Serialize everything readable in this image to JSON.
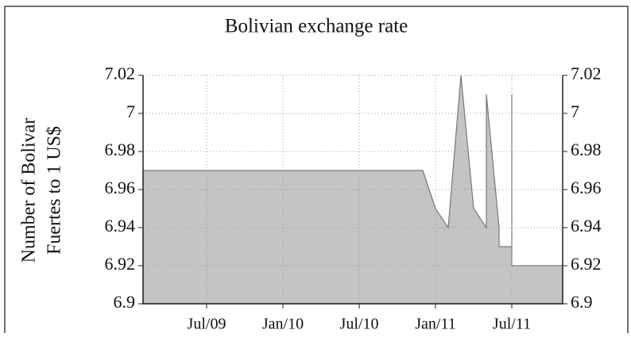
{
  "chart_data": {
    "type": "area",
    "title": "Bolivian exchange rate",
    "ylabel": [
      "Number of Bolivar",
      "Fuertes to 1 US$"
    ],
    "x": [
      "2009-02",
      "2010-12",
      "2011-01",
      "2011-02",
      "2011-03",
      "2011-04",
      "2011-05",
      "2011-05",
      "2011-06",
      "2011-06",
      "2011-07",
      "2011-07",
      "2011-07",
      "2011-11"
    ],
    "values": [
      6.97,
      6.97,
      6.95,
      6.94,
      7.02,
      6.95,
      6.94,
      7.01,
      6.94,
      6.93,
      6.93,
      7.01,
      6.92,
      6.92
    ],
    "color": "#c4c4c4",
    "xlim": [
      "2009-02",
      "2011-11"
    ],
    "xticks": [
      {
        "value": "2009-07",
        "label": "Jul/09"
      },
      {
        "value": "2010-01",
        "label": "Jan/10"
      },
      {
        "value": "2010-07",
        "label": "Jul/10"
      },
      {
        "value": "2011-01",
        "label": "Jan/11"
      },
      {
        "value": "2011-07",
        "label": "Jul/11"
      }
    ],
    "ylim": [
      6.9,
      7.02
    ],
    "yticks": [
      6.9,
      6.92,
      6.94,
      6.96,
      6.98,
      7,
      7.02
    ],
    "y2lim": [
      6.9,
      7.02
    ],
    "y2ticks": [
      6.9,
      6.92,
      6.94,
      6.96,
      6.98,
      7,
      7.02
    ],
    "grid": true
  }
}
